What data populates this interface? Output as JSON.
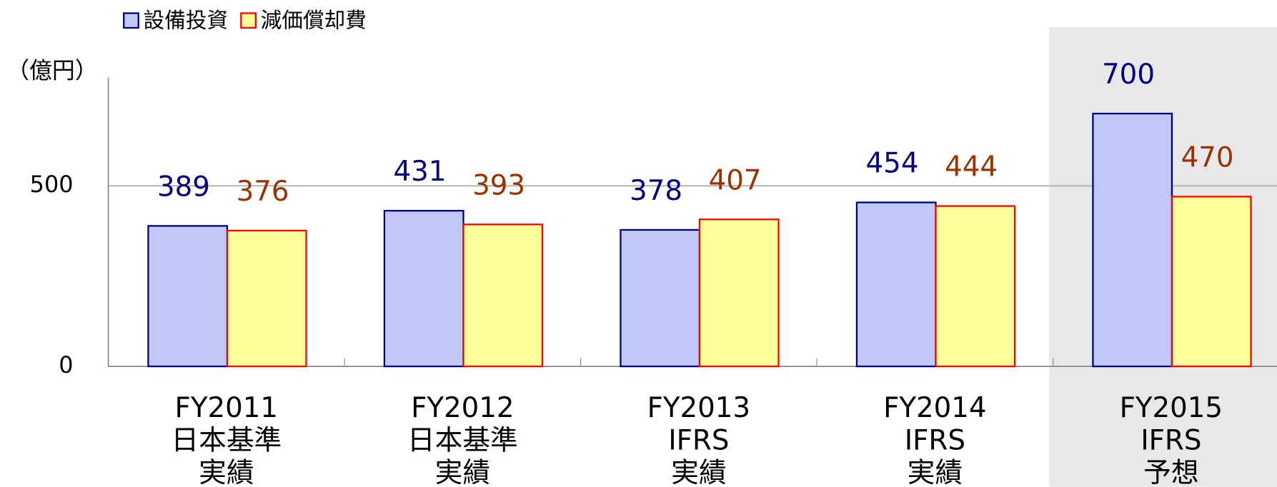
{
  "chart_data": {
    "type": "bar",
    "unit_label": "（億円）",
    "categories": [
      [
        "FY2011",
        "日本基準",
        "実績"
      ],
      [
        "FY2012",
        "日本基準",
        "実績"
      ],
      [
        "FY2013",
        "IFRS",
        "実績"
      ],
      [
        "FY2014",
        "IFRS",
        "実績"
      ],
      [
        "FY2015",
        "IFRS",
        "予想"
      ]
    ],
    "series": [
      {
        "name": "設備投資",
        "color": "#c0c8f8",
        "edge_color": "#000080",
        "label_color": "#000080",
        "values": [
          389,
          431,
          378,
          454,
          700
        ]
      },
      {
        "name": "減価償却費",
        "color": "#ffff99",
        "edge_color": "#ff0000",
        "label_color": "#993300",
        "values": [
          376,
          393,
          407,
          444,
          470
        ]
      }
    ],
    "ylim": [
      0,
      800
    ],
    "yticks": [
      0,
      500
    ],
    "grid": true,
    "legend": "top-left"
  }
}
